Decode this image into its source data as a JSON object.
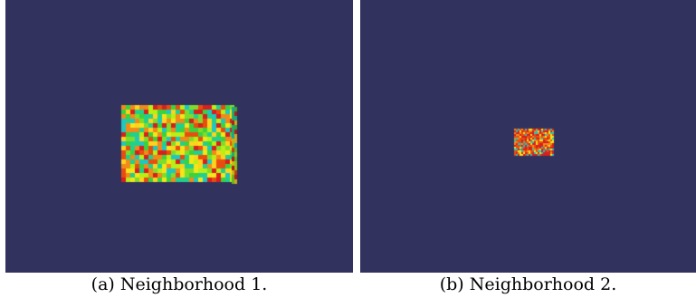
{
  "panels": [
    {
      "caption": "(a) Neighborhood 1.",
      "background_color": "#32325f"
    },
    {
      "caption": "(b) Neighborhood 2.",
      "background_color": "#32325f"
    }
  ],
  "voxel_palette": [
    "#f2e619",
    "#b8ef14",
    "#7fdd2a",
    "#3cd23c",
    "#22d08c",
    "#1ec8c0",
    "#f08a1a",
    "#e84d10",
    "#d81f1f",
    "#ffd21e"
  ]
}
